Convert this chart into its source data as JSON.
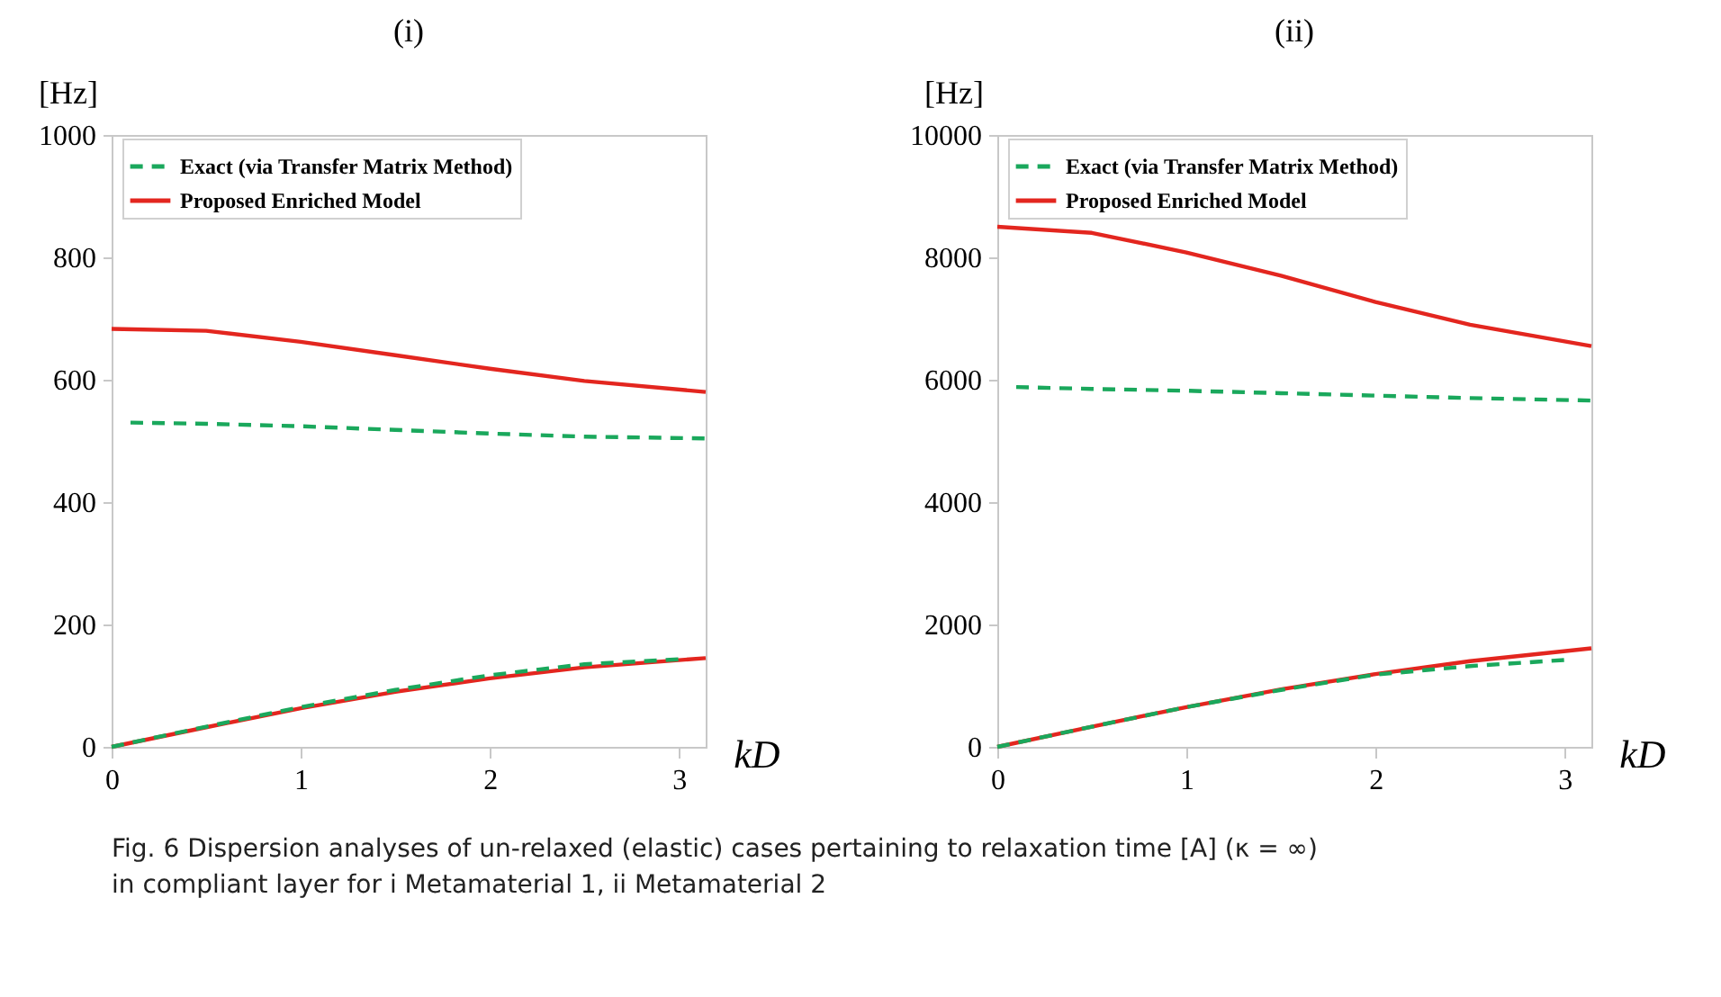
{
  "chart_data": [
    {
      "type": "line",
      "title": "(i)",
      "ylabel": "[Hz]",
      "xlabel": "kD",
      "xlim": [
        0,
        3.1416
      ],
      "xticks": [
        0,
        1,
        2,
        3
      ],
      "ylim": [
        0,
        1000
      ],
      "yticks": [
        0,
        200,
        400,
        600,
        800,
        1000
      ],
      "grid": false,
      "legend": "top",
      "marker": "none",
      "series": [
        {
          "name": "Exact (via Transfer Matrix Method)",
          "color": "#1aa85c",
          "line_style": "dashed",
          "x": [
            0.1,
            0.5,
            1,
            1.5,
            2,
            2.5,
            3.1416,
            null,
            0,
            0.5,
            1,
            1.5,
            2,
            2.5,
            3.0
          ],
          "values": [
            530,
            528,
            524,
            518,
            512,
            507,
            504,
            null,
            0,
            33,
            65,
            93,
            117,
            135,
            143
          ]
        },
        {
          "name": "Proposed Enriched Model",
          "color": "#e3261f",
          "line_style": "solid",
          "x": [
            0,
            0.5,
            1,
            1.5,
            2,
            2.5,
            3.1416,
            null,
            0,
            0.5,
            1,
            1.5,
            2,
            2.5,
            3.1416
          ],
          "values": [
            683,
            680,
            662,
            640,
            618,
            598,
            580,
            null,
            0,
            32,
            63,
            90,
            112,
            130,
            145
          ]
        }
      ]
    },
    {
      "type": "line",
      "title": "(ii)",
      "ylabel": "[Hz]",
      "xlabel": "kD",
      "xlim": [
        0,
        3.1416
      ],
      "xticks": [
        0,
        1,
        2,
        3
      ],
      "ylim": [
        0,
        10000
      ],
      "yticks": [
        0,
        2000,
        4000,
        6000,
        8000,
        10000
      ],
      "grid": false,
      "legend": "top",
      "marker": "none",
      "series": [
        {
          "name": "Exact (via Transfer Matrix Method)",
          "color": "#1aa85c",
          "line_style": "dashed",
          "x": [
            0.1,
            0.5,
            1,
            1.5,
            2,
            2.5,
            3.1416,
            null,
            0,
            0.5,
            1,
            1.5,
            2,
            2.5,
            3.0
          ],
          "values": [
            5880,
            5850,
            5820,
            5780,
            5740,
            5700,
            5660,
            null,
            0,
            330,
            650,
            930,
            1180,
            1320,
            1420
          ]
        },
        {
          "name": "Proposed Enriched Model",
          "color": "#e3261f",
          "line_style": "solid",
          "x": [
            0,
            0.5,
            1,
            1.5,
            2,
            2.5,
            3.1416,
            null,
            0,
            0.5,
            1,
            1.5,
            2,
            2.5,
            3.1416
          ],
          "values": [
            8500,
            8400,
            8080,
            7700,
            7270,
            6900,
            6550,
            null,
            0,
            330,
            650,
            940,
            1190,
            1400,
            1610
          ]
        }
      ],
      "annotations": [
        "Fig. 6  Dispersion analyses of un-relaxed (elastic) cases pertaining to relaxation time [A] (κ = ∞) in compliant layer for i Metamaterial 1, ii Metamaterial 2"
      ]
    }
  ]
}
